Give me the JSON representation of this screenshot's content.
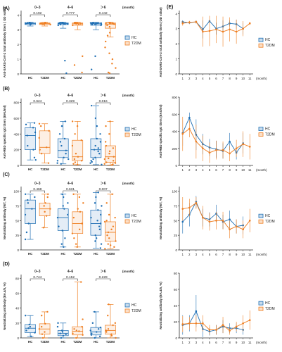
{
  "colors": {
    "HC": "#1f6fb4",
    "T2DM": "#ef7f22",
    "axis": "#333333"
  },
  "legend": [
    "HC",
    "T2DM"
  ],
  "chart_data": [
    {
      "id": "A",
      "type": "box",
      "panel": "(A)",
      "ylabel": "Anti-SARS-CoV-2 total antibody titers ( OD value)",
      "yticks": [
        "0",
        "1",
        "2",
        "3",
        "4"
      ],
      "ylim": [
        0,
        4.3
      ],
      "group_labels": [
        "0–3",
        "4–6",
        "＞6"
      ],
      "group_unit": "(month)",
      "categories": [
        "HC",
        "T2DM"
      ],
      "p_values": [
        "0.192",
        "0.777",
        "0.442"
      ],
      "series": [
        {
          "name": "HC",
          "groups": [
            {
              "q1": 3.35,
              "median": 3.42,
              "q3": 3.47,
              "min": 3.25,
              "max": 3.52,
              "points": [
                3.35,
                3.4,
                3.42,
                3.44,
                3.47,
                3.38,
                3.45
              ]
            },
            {
              "q1": 3.35,
              "median": 3.42,
              "q3": 3.46,
              "min": 3.1,
              "max": 3.52,
              "points": [
                3.4,
                3.42,
                3.46,
                3.35,
                0.05,
                0.9,
                3.3,
                3.45,
                3.48,
                3.38,
                3.44,
                3.41
              ]
            },
            {
              "q1": 3.3,
              "median": 3.4,
              "q3": 3.46,
              "min": 3.0,
              "max": 3.52,
              "points": [
                3.4,
                3.42,
                3.46,
                3.3,
                3.35,
                0.3,
                1.2,
                3.44,
                3.47,
                3.38,
                3.41,
                3.43,
                3.45,
                3.36
              ]
            }
          ]
        },
        {
          "name": "T2DM",
          "groups": [
            {
              "q1": 3.35,
              "median": 3.41,
              "q3": 3.46,
              "min": 3.25,
              "max": 3.52,
              "points": [
                3.35,
                3.4,
                3.43,
                3.46,
                3.38,
                3.44
              ]
            },
            {
              "q1": 3.3,
              "median": 3.4,
              "q3": 3.46,
              "min": 3.0,
              "max": 3.52,
              "points": [
                3.4,
                3.42,
                3.46,
                3.3,
                1.2,
                0.6,
                0.1,
                3.44,
                3.47,
                3.38,
                3.41
              ]
            },
            {
              "q1": 3.1,
              "median": 3.38,
              "q3": 3.46,
              "min": 2.5,
              "max": 3.52,
              "points": [
                3.4,
                3.42,
                3.46,
                3.3,
                2.8,
                2.2,
                1.8,
                1.4,
                1.0,
                0.7,
                0.4,
                0.1,
                0.05,
                3.44,
                3.47,
                3.38,
                3.41,
                3.2,
                2.6
              ]
            }
          ]
        }
      ]
    },
    {
      "id": "B",
      "type": "box",
      "panel": "(B)",
      "ylabel": "Anti-RBD specific IgG titers (BAU/ml)",
      "yticks": [
        "0",
        "200",
        "400",
        "600",
        "800"
      ],
      "ylim": [
        0,
        850
      ],
      "group_labels": [
        "0–3",
        "4–6",
        "＞6"
      ],
      "group_unit": "(month)",
      "categories": [
        "HC",
        "T2DM"
      ],
      "p_values": [
        "0.624",
        "0.329",
        "0.016"
      ],
      "series": [
        {
          "name": "HC",
          "groups": [
            {
              "q1": 200,
              "median": 380,
              "q3": 480,
              "min": 70,
              "max": 540,
              "points": [
                380,
                480,
                520,
                250,
                200,
                100,
                70,
                420,
                540
              ]
            },
            {
              "q1": 100,
              "median": 190,
              "q3": 340,
              "min": 20,
              "max": 560,
              "points": [
                190,
                340,
                100,
                60,
                20,
                250,
                400,
                500,
                560,
                150,
                300,
                80,
                30
              ]
            },
            {
              "q1": 100,
              "median": 200,
              "q3": 340,
              "min": 10,
              "max": 760,
              "points": [
                200,
                340,
                100,
                60,
                10,
                250,
                400,
                500,
                600,
                760,
                150,
                300,
                80,
                30,
                45,
                220,
                180
              ]
            }
          ]
        },
        {
          "name": "T2DM",
          "groups": [
            {
              "q1": 150,
              "median": 230,
              "q3": 440,
              "min": 30,
              "max": 530,
              "points": [
                230,
                440,
                150,
                30,
                500,
                530,
                200,
                350
              ]
            },
            {
              "q1": 60,
              "median": 110,
              "q3": 320,
              "min": 10,
              "max": 560,
              "points": [
                110,
                320,
                60,
                20,
                10,
                250,
                400,
                500,
                560,
                150,
                80,
                40
              ]
            },
            {
              "q1": 40,
              "median": 110,
              "q3": 250,
              "min": 5,
              "max": 560,
              "points": [
                110,
                250,
                40,
                20,
                5,
                300,
                400,
                500,
                560,
                150,
                80,
                60,
                180,
                220,
                90,
                30,
                15
              ]
            }
          ]
        }
      ]
    },
    {
      "id": "C",
      "type": "box",
      "panel": "(C)",
      "ylabel": "Neutralizing antibody (WT, %)",
      "yticks": [
        "0",
        "25",
        "50",
        "75",
        "100"
      ],
      "ylim": [
        0,
        108
      ],
      "group_labels": [
        "0–3",
        "4–6",
        "＞6"
      ],
      "group_unit": "(month)",
      "categories": [
        "HC",
        "T2DM"
      ],
      "p_values": [
        "0.468",
        "0.631",
        "0.007"
      ],
      "series": [
        {
          "name": "HC",
          "groups": [
            {
              "q1": 45,
              "median": 70,
              "q3": 85,
              "min": 18,
              "max": 95,
              "points": [
                70,
                85,
                45,
                18,
                90,
                95,
                60,
                30,
                80
              ]
            },
            {
              "q1": 33,
              "median": 55,
              "q3": 70,
              "min": 5,
              "max": 95,
              "points": [
                55,
                70,
                33,
                10,
                5,
                80,
                90,
                95,
                40,
                60,
                20,
                75
              ]
            },
            {
              "q1": 25,
              "median": 45,
              "q3": 68,
              "min": 3,
              "max": 98,
              "points": [
                45,
                68,
                25,
                10,
                3,
                80,
                90,
                98,
                40,
                60,
                20,
                75,
                50,
                35,
                15,
                55
              ]
            }
          ]
        },
        {
          "name": "T2DM",
          "groups": [
            {
              "q1": 58,
              "median": 70,
              "q3": 80,
              "min": 38,
              "max": 95,
              "points": [
                70,
                80,
                58,
                38,
                90,
                95,
                65,
                75
              ]
            },
            {
              "q1": 28,
              "median": 45,
              "q3": 65,
              "min": 5,
              "max": 95,
              "points": [
                45,
                65,
                28,
                10,
                5,
                80,
                90,
                95,
                35,
                55,
                20,
                70
              ]
            },
            {
              "q1": 15,
              "median": 30,
              "q3": 48,
              "min": 2,
              "max": 95,
              "points": [
                30,
                48,
                15,
                8,
                2,
                60,
                80,
                95,
                25,
                40,
                10,
                55,
                35,
                20,
                5,
                50
              ]
            }
          ]
        }
      ]
    },
    {
      "id": "D",
      "type": "box",
      "panel": "(D)",
      "ylabel": "Neutralizing antibody (BA.4/5, %)",
      "yticks": [
        "0",
        "20",
        "40",
        "60",
        "80"
      ],
      "ylim": [
        0,
        85
      ],
      "group_labels": [
        "0–3",
        "4–6",
        "＞6"
      ],
      "group_unit": "(month)",
      "categories": [
        "HC",
        "T2DM"
      ],
      "p_values": [
        "0.744",
        "0.152",
        "0.229"
      ],
      "series": [
        {
          "name": "HC",
          "groups": [
            {
              "q1": 7,
              "median": 13,
              "q3": 18,
              "min": 2,
              "max": 30,
              "points": [
                13,
                18,
                7,
                2,
                30,
                10,
                15
              ]
            },
            {
              "q1": 3,
              "median": 6,
              "q3": 10,
              "min": 0,
              "max": 20,
              "points": [
                6,
                10,
                3,
                0,
                15,
                20,
                5,
                8
              ]
            },
            {
              "q1": 4,
              "median": 8,
              "q3": 14,
              "min": 0,
              "max": 35,
              "points": [
                8,
                14,
                4,
                0,
                20,
                35,
                10,
                6,
                12,
                2
              ]
            }
          ]
        },
        {
          "name": "T2DM",
          "groups": [
            {
              "q1": 5,
              "median": 12,
              "q3": 19,
              "min": 0,
              "max": 35,
              "points": [
                12,
                19,
                5,
                0,
                30,
                35,
                8,
                15
              ]
            },
            {
              "q1": 4,
              "median": 9,
              "q3": 15,
              "min": 0,
              "max": 75,
              "points": [
                9,
                15,
                4,
                0,
                25,
                75,
                10,
                6,
                12
              ]
            },
            {
              "q1": 5,
              "median": 10,
              "q3": 17,
              "min": 0,
              "max": 45,
              "points": [
                10,
                17,
                5,
                0,
                30,
                45,
                12,
                8,
                20,
                3
              ]
            }
          ]
        }
      ]
    },
    {
      "id": "E1",
      "type": "line",
      "panel": "(E)",
      "ylabel": "Anti-SARS-CoV-2 total antibody titers (OD value)",
      "yticks": [
        "0",
        "1",
        "2",
        "3",
        "4"
      ],
      "ylim": [
        0,
        4.2
      ],
      "x": [
        1,
        2,
        3,
        4,
        5,
        6,
        7,
        8,
        9,
        10,
        11
      ],
      "xlabel_unit": "(month)",
      "series": [
        {
          "name": "HC",
          "y": [
            3.45,
            3.4,
            3.45,
            2.95,
            3.5,
            3.0,
            3.15,
            3.35,
            3.3,
            3.0,
            null
          ],
          "err": [
            0.1,
            0.1,
            0.1,
            0.6,
            0.1,
            0.4,
            0.4,
            0.2,
            0.3,
            0.4,
            null
          ]
        },
        {
          "name": "T2DM",
          "y": [
            3.35,
            3.42,
            3.45,
            2.8,
            2.85,
            2.95,
            2.8,
            2.95,
            2.8,
            3.0,
            3.35
          ],
          "err": [
            0.15,
            0.1,
            0.1,
            1.0,
            1.0,
            0.9,
            1.0,
            0.8,
            0.8,
            0.5,
            0.1
          ]
        }
      ]
    },
    {
      "id": "E2",
      "type": "line",
      "panel": "",
      "ylabel": "Anti-RBD specific IgG titers (BAU/ml)",
      "yticks": [
        "0",
        "200",
        "400",
        "600",
        "800"
      ],
      "ylim": [
        0,
        800
      ],
      "x": [
        1,
        2,
        3,
        4,
        5,
        6,
        7,
        8,
        9,
        10,
        11
      ],
      "xlabel_unit": "(month)",
      "series": [
        {
          "name": "HC",
          "y": [
            380,
            560,
            360,
            250,
            210,
            190,
            170,
            280,
            150,
            260,
            null
          ],
          "err": [
            150,
            60,
            180,
            120,
            100,
            100,
            90,
            100,
            80,
            120,
            null
          ]
        },
        {
          "name": "T2DM",
          "y": [
            370,
            430,
            280,
            200,
            150,
            180,
            180,
            140,
            200,
            250,
            220
          ],
          "err": [
            200,
            100,
            200,
            150,
            120,
            110,
            100,
            90,
            100,
            150,
            150
          ]
        }
      ]
    },
    {
      "id": "E3",
      "type": "line",
      "panel": "",
      "ylabel": "Neutralizing antibody (WT, %)",
      "yticks": [
        "0",
        "25",
        "50",
        "75",
        "100"
      ],
      "ylim": [
        0,
        108
      ],
      "x": [
        1,
        2,
        3,
        4,
        5,
        6,
        7,
        8,
        9,
        10,
        11
      ],
      "xlabel_unit": "(month)",
      "series": [
        {
          "name": "HC",
          "y": [
            48,
            60,
            82,
            55,
            52,
            62,
            48,
            52,
            40,
            42,
            null
          ],
          "err": [
            20,
            20,
            10,
            15,
            12,
            15,
            12,
            15,
            12,
            15,
            null
          ]
        },
        {
          "name": "T2DM",
          "y": [
            70,
            72,
            80,
            55,
            48,
            50,
            50,
            35,
            40,
            35,
            50
          ],
          "err": [
            20,
            15,
            10,
            20,
            15,
            15,
            15,
            15,
            12,
            15,
            20
          ]
        }
      ]
    },
    {
      "id": "E4",
      "type": "line",
      "panel": "",
      "ylabel": "Neutralizing antibody (BA.4/5, %)",
      "yticks": [
        "0",
        "20",
        "40",
        "60",
        "80"
      ],
      "ylim": [
        0,
        80
      ],
      "x": [
        1,
        2,
        3,
        4,
        5,
        6,
        7,
        8,
        9,
        10,
        11
      ],
      "xlabel_unit": "(month)",
      "series": [
        {
          "name": "HC",
          "y": [
            16,
            18,
            33,
            11,
            8,
            10,
            14,
            12,
            12,
            10,
            null
          ],
          "err": [
            12,
            10,
            20,
            10,
            5,
            6,
            8,
            6,
            6,
            6,
            null
          ]
        },
        {
          "name": "T2DM",
          "y": [
            17,
            18,
            18,
            18,
            10,
            10,
            16,
            9,
            14,
            18,
            22
          ],
          "err": [
            10,
            8,
            10,
            10,
            6,
            6,
            10,
            5,
            6,
            10,
            12
          ]
        }
      ]
    }
  ]
}
